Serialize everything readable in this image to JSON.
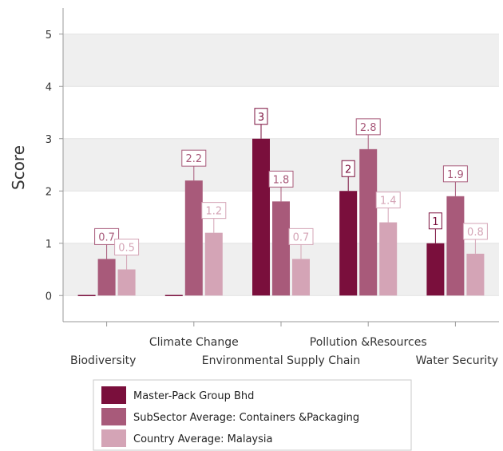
{
  "chart_data": {
    "type": "bar",
    "ylabel": "Score",
    "ylim": [
      -0.5,
      5.5
    ],
    "yticks": [
      0,
      1,
      2,
      3,
      4,
      5
    ],
    "grid": true,
    "categories": [
      "Biodiversity",
      "Climate Change",
      "Environmental Supply Chain",
      "Pollution &Resources",
      "Water Security"
    ],
    "series": [
      {
        "name": "Master-Pack Group Bhd",
        "color": "#7a0f3c",
        "values": [
          0,
          0,
          3,
          2,
          1
        ],
        "labels": [
          "",
          "",
          "3",
          "2",
          "1"
        ]
      },
      {
        "name": "SubSector Average: Containers &Packaging",
        "color": "#a85a7a",
        "values": [
          0.7,
          2.2,
          1.8,
          2.8,
          1.9
        ],
        "labels": [
          "0.7",
          "2.2",
          "1.8",
          "2.8",
          "1.9"
        ]
      },
      {
        "name": "Country Average: Malaysia",
        "color": "#d4a4b6",
        "values": [
          0.5,
          1.2,
          0.7,
          1.4,
          0.8
        ],
        "labels": [
          "0.5",
          "1.2",
          "0.7",
          "1.4",
          "0.8"
        ]
      }
    ],
    "legend_position": "bottom-center"
  }
}
